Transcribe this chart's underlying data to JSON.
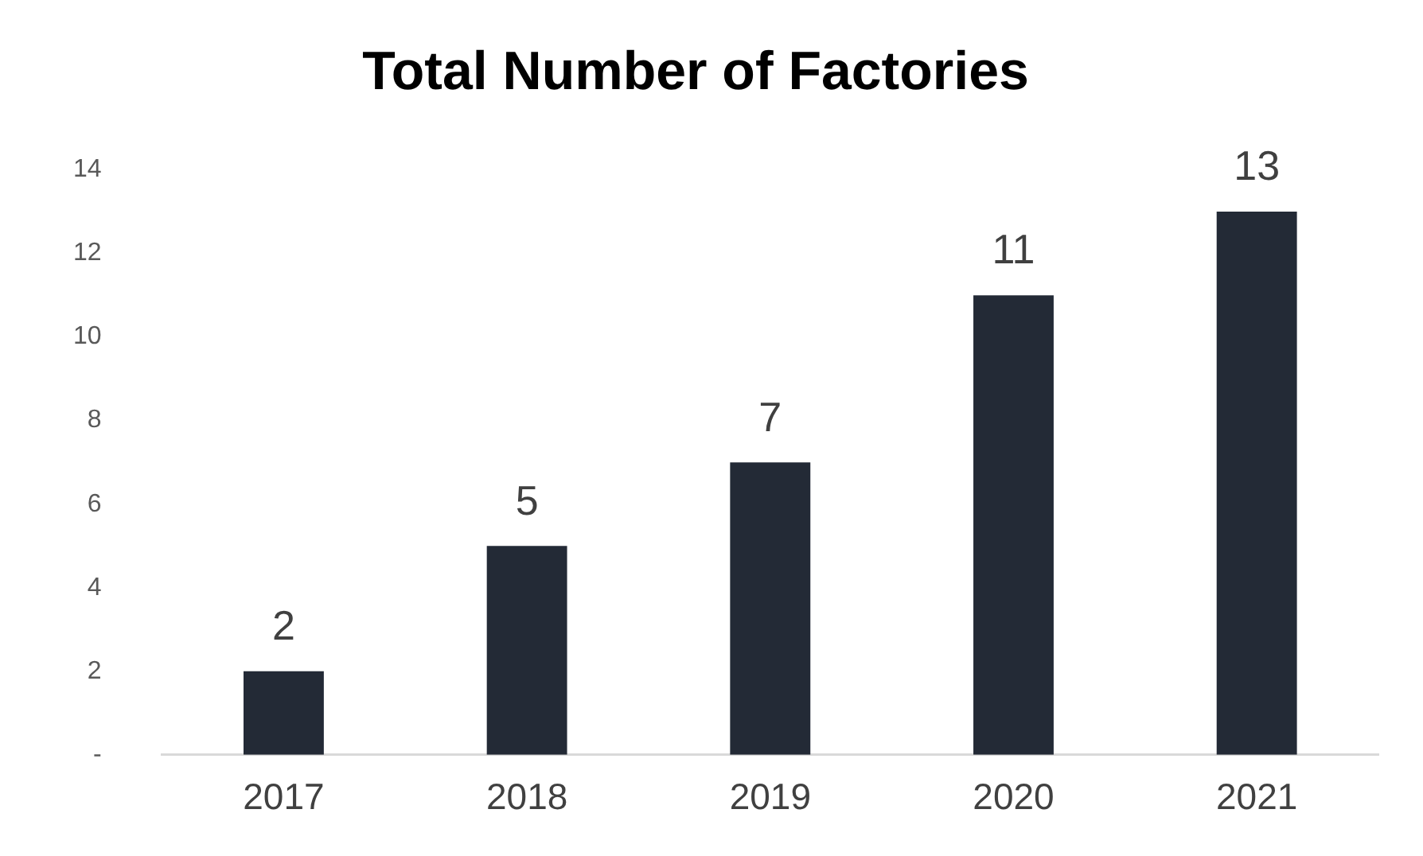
{
  "chart_data": {
    "type": "bar",
    "title": "Total Number of Factories",
    "categories": [
      "2017",
      "2018",
      "2019",
      "2020",
      "2021"
    ],
    "values": [
      2,
      5,
      7,
      11,
      13
    ],
    "color": "#232a36",
    "ylim": [
      0,
      14
    ],
    "yticks": [
      {
        "value": 0,
        "label": "-"
      },
      2,
      4,
      6,
      8,
      10,
      12,
      14
    ],
    "grid": false,
    "legend": false,
    "data_labels": true
  }
}
